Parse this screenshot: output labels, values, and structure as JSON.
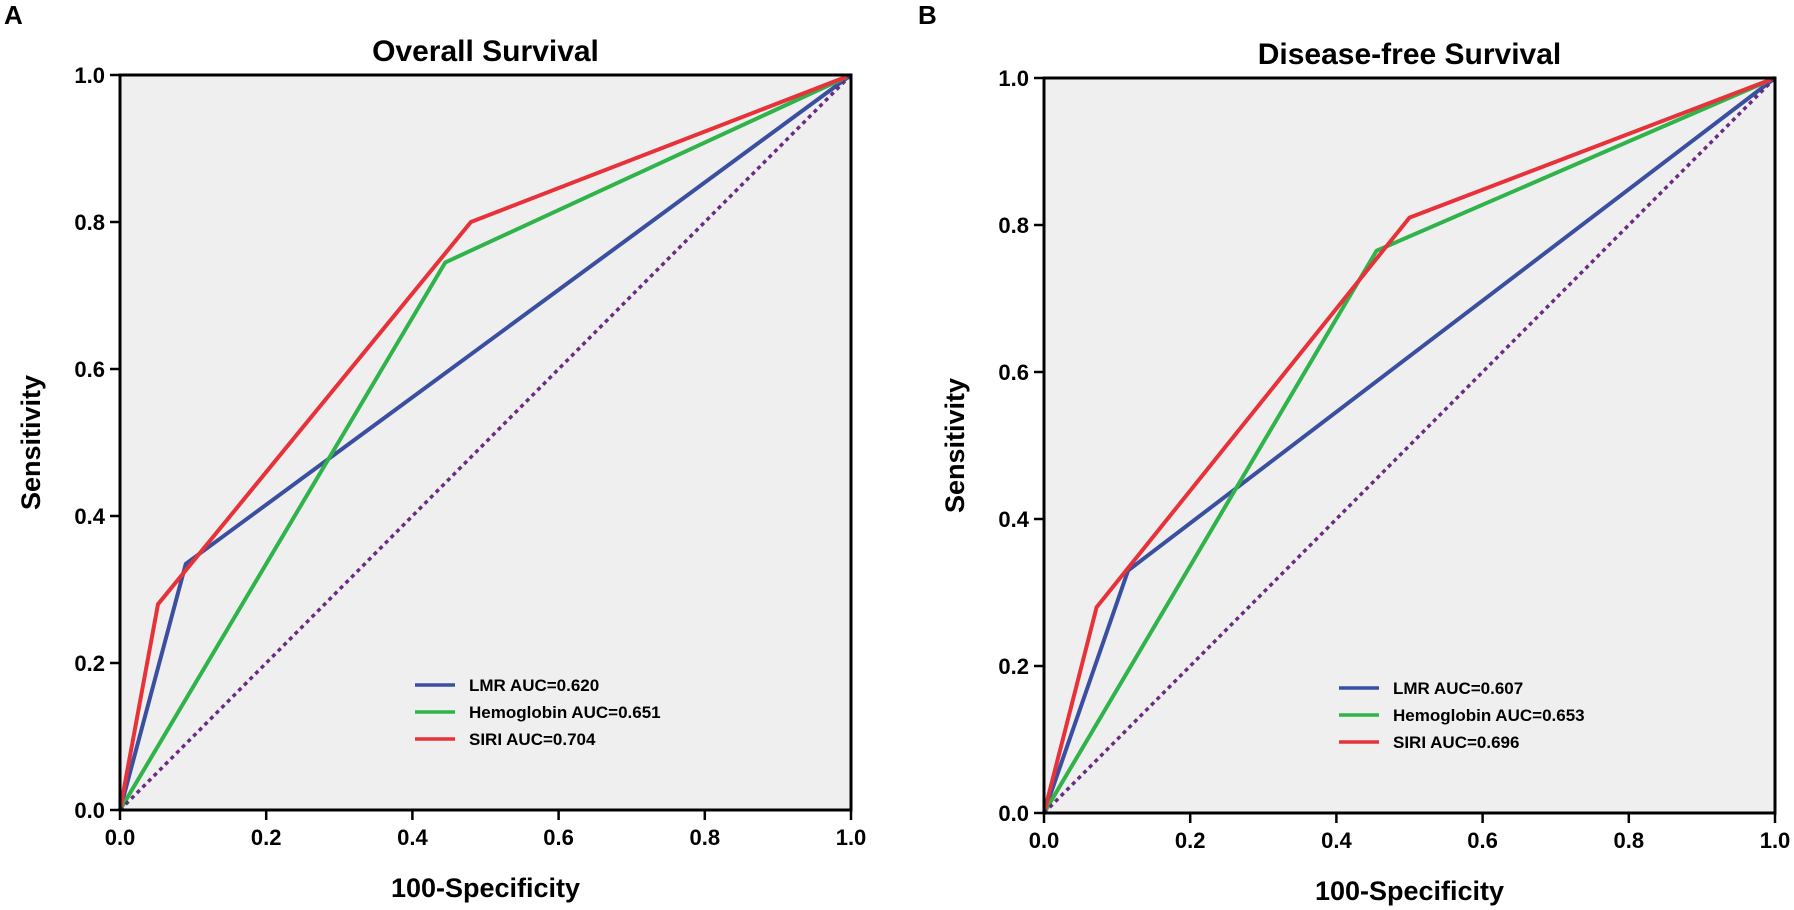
{
  "chart_data": [
    {
      "type": "line",
      "panel_label": "A",
      "title": "Overall Survival",
      "xlabel": "100-Specificity",
      "ylabel": "Sensitivity",
      "xlim": [
        0,
        1
      ],
      "ylim": [
        0,
        1
      ],
      "xticks": [
        "0.0",
        "0.2",
        "0.4",
        "0.6",
        "0.8",
        "1.0"
      ],
      "yticks": [
        "0.0",
        "0.2",
        "0.4",
        "0.6",
        "0.8",
        "1.0"
      ],
      "legend_position": "bottom-right",
      "series": [
        {
          "name": "LMR AUC=0.620",
          "color": "#3a4fa0",
          "dashed": false,
          "x": [
            0,
            0.09,
            1
          ],
          "y": [
            0,
            0.335,
            1
          ]
        },
        {
          "name": "Hemoglobin AUC=0.651",
          "color": "#2fb34a",
          "dashed": false,
          "x": [
            0,
            0.445,
            1
          ],
          "y": [
            0,
            0.745,
            1
          ]
        },
        {
          "name": "SIRI AUC=0.704",
          "color": "#e8323a",
          "dashed": false,
          "x": [
            0,
            0.052,
            0.48,
            1
          ],
          "y": [
            0,
            0.28,
            0.8,
            1
          ]
        },
        {
          "name": "",
          "color": "#6a2c82",
          "dashed": true,
          "x": [
            0,
            1
          ],
          "y": [
            0,
            1
          ]
        }
      ]
    },
    {
      "type": "line",
      "panel_label": "B",
      "title": "Disease-free Survival",
      "xlabel": "100-Specificity",
      "ylabel": "Sensitivity",
      "xlim": [
        0,
        1
      ],
      "ylim": [
        0,
        1
      ],
      "xticks": [
        "0.0",
        "0.2",
        "0.4",
        "0.6",
        "0.8",
        "1.0"
      ],
      "yticks": [
        "0.0",
        "0.2",
        "0.4",
        "0.6",
        "0.8",
        "1.0"
      ],
      "legend_position": "bottom-right",
      "series": [
        {
          "name": "LMR AUC=0.607",
          "color": "#3a4fa0",
          "dashed": false,
          "x": [
            0,
            0.115,
            1
          ],
          "y": [
            0,
            0.33,
            1
          ]
        },
        {
          "name": "Hemoglobin AUC=0.653",
          "color": "#2fb34a",
          "dashed": false,
          "x": [
            0,
            0.455,
            1
          ],
          "y": [
            0,
            0.765,
            1
          ]
        },
        {
          "name": "SIRI AUC=0.696",
          "color": "#e8323a",
          "dashed": false,
          "x": [
            0,
            0.072,
            0.5,
            1
          ],
          "y": [
            0,
            0.28,
            0.81,
            1
          ]
        },
        {
          "name": "",
          "color": "#6a2c82",
          "dashed": true,
          "x": [
            0,
            1
          ],
          "y": [
            0,
            1
          ]
        }
      ]
    }
  ]
}
